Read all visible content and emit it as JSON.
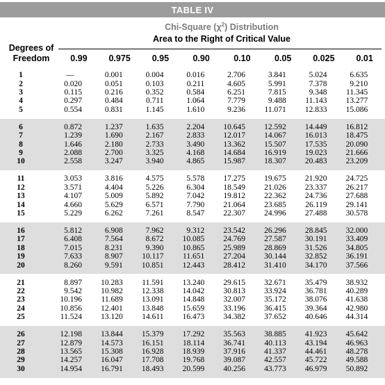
{
  "table_title": "TABLE IV",
  "subtitle_prefix": "Chi-Square (",
  "subtitle_symbol": "χ",
  "subtitle_exp": "2",
  "subtitle_suffix": ") Distribution",
  "area_heading": "Area to the Right of Critical Value",
  "df_heading_line1": "Degrees of",
  "df_heading_line2": "Freedom",
  "columns": [
    "0.99",
    "0.975",
    "0.95",
    "0.90",
    "0.10",
    "0.05",
    "0.025",
    "0.01"
  ],
  "rows": [
    {
      "df": "1",
      "values": [
        "—",
        "0.001",
        "0.004",
        "0.016",
        "2.706",
        "3.841",
        "5.024",
        "6.635"
      ]
    },
    {
      "df": "2",
      "values": [
        "0.020",
        "0.051",
        "0.103",
        "0.211",
        "4.605",
        "5.991",
        "7.378",
        "9.210"
      ]
    },
    {
      "df": "3",
      "values": [
        "0.115",
        "0.216",
        "0.352",
        "0.584",
        "6.251",
        "7.815",
        "9.348",
        "11.345"
      ]
    },
    {
      "df": "4",
      "values": [
        "0.297",
        "0.484",
        "0.711",
        "1.064",
        "7.779",
        "9.488",
        "11.143",
        "13.277"
      ]
    },
    {
      "df": "5",
      "values": [
        "0.554",
        "0.831",
        "1.145",
        "1.610",
        "9.236",
        "11.071",
        "12.833",
        "15.086"
      ]
    },
    {
      "df": "6",
      "values": [
        "0.872",
        "1.237",
        "1.635",
        "2.204",
        "10.645",
        "12.592",
        "14.449",
        "16.812"
      ]
    },
    {
      "df": "7",
      "values": [
        "1.239",
        "1.690",
        "2.167",
        "2.833",
        "12.017",
        "14.067",
        "16.013",
        "18.475"
      ]
    },
    {
      "df": "8",
      "values": [
        "1.646",
        "2.180",
        "2.733",
        "3.490",
        "13.362",
        "15.507",
        "17.535",
        "20.090"
      ]
    },
    {
      "df": "9",
      "values": [
        "2.088",
        "2.700",
        "3.325",
        "4.168",
        "14.684",
        "16.919",
        "19.023",
        "21.666"
      ]
    },
    {
      "df": "10",
      "values": [
        "2.558",
        "3.247",
        "3.940",
        "4.865",
        "15.987",
        "18.307",
        "20.483",
        "23.209"
      ]
    },
    {
      "df": "11",
      "values": [
        "3.053",
        "3.816",
        "4.575",
        "5.578",
        "17.275",
        "19.675",
        "21.920",
        "24.725"
      ]
    },
    {
      "df": "12",
      "values": [
        "3.571",
        "4.404",
        "5.226",
        "6.304",
        "18.549",
        "21.026",
        "23.337",
        "26.217"
      ]
    },
    {
      "df": "13",
      "values": [
        "4.107",
        "5.009",
        "5.892",
        "7.042",
        "19.812",
        "22.362",
        "24.736",
        "27.688"
      ]
    },
    {
      "df": "14",
      "values": [
        "4.660",
        "5.629",
        "6.571",
        "7.790",
        "21.064",
        "23.685",
        "26.119",
        "29.141"
      ]
    },
    {
      "df": "15",
      "values": [
        "5.229",
        "6.262",
        "7.261",
        "8.547",
        "22.307",
        "24.996",
        "27.488",
        "30.578"
      ]
    },
    {
      "df": "16",
      "values": [
        "5.812",
        "6.908",
        "7.962",
        "9.312",
        "23.542",
        "26.296",
        "28.845",
        "32.000"
      ]
    },
    {
      "df": "17",
      "values": [
        "6.408",
        "7.564",
        "8.672",
        "10.085",
        "24.769",
        "27.587",
        "30.191",
        "33.409"
      ]
    },
    {
      "df": "18",
      "values": [
        "7.015",
        "8.231",
        "9.390",
        "10.865",
        "25.989",
        "28.869",
        "31.526",
        "34.805"
      ]
    },
    {
      "df": "19",
      "values": [
        "7.633",
        "8.907",
        "10.117",
        "11.651",
        "27.204",
        "30.144",
        "32.852",
        "36.191"
      ]
    },
    {
      "df": "20",
      "values": [
        "8.260",
        "9.591",
        "10.851",
        "12.443",
        "28.412",
        "31.410",
        "34.170",
        "37.566"
      ]
    },
    {
      "df": "21",
      "values": [
        "8.897",
        "10.283",
        "11.591",
        "13.240",
        "29.615",
        "32.671",
        "35.479",
        "38.932"
      ]
    },
    {
      "df": "22",
      "values": [
        "9.542",
        "10.982",
        "12.338",
        "14.042",
        "30.813",
        "33.924",
        "36.781",
        "40.289"
      ]
    },
    {
      "df": "23",
      "values": [
        "10.196",
        "11.689",
        "13.091",
        "14.848",
        "32.007",
        "35.172",
        "38.076",
        "41.638"
      ]
    },
    {
      "df": "24",
      "values": [
        "10.856",
        "12.401",
        "13.848",
        "15.659",
        "33.196",
        "36.415",
        "39.364",
        "42.980"
      ]
    },
    {
      "df": "25",
      "values": [
        "11.524",
        "13.120",
        "14.611",
        "16.473",
        "34.382",
        "37.652",
        "40.646",
        "44.314"
      ]
    },
    {
      "df": "26",
      "values": [
        "12.198",
        "13.844",
        "15.379",
        "17.292",
        "35.563",
        "38.885",
        "41.923",
        "45.642"
      ]
    },
    {
      "df": "27",
      "values": [
        "12.879",
        "14.573",
        "16.151",
        "18.114",
        "36.741",
        "40.113",
        "43.194",
        "46.963"
      ]
    },
    {
      "df": "28",
      "values": [
        "13.565",
        "15.308",
        "16.928",
        "18.939",
        "37.916",
        "41.337",
        "44.461",
        "48.278"
      ]
    },
    {
      "df": "29",
      "values": [
        "14.257",
        "16.047",
        "17.708",
        "19.768",
        "39.087",
        "42.557",
        "45.722",
        "49.588"
      ]
    },
    {
      "df": "30",
      "values": [
        "14.954",
        "16.791",
        "18.493",
        "20.599",
        "40.256",
        "43.773",
        "46.979",
        "50.892"
      ]
    }
  ]
}
